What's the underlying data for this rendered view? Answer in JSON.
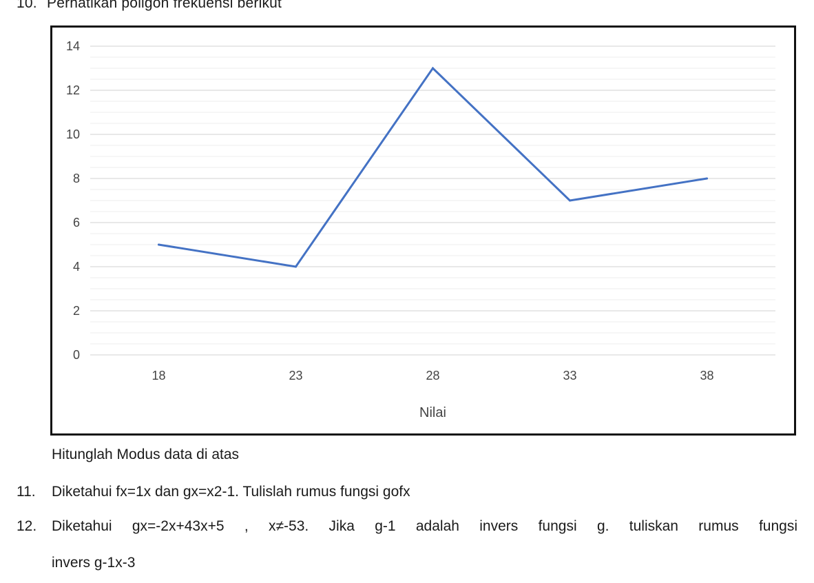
{
  "q10": {
    "number": "10.",
    "text": "Perhatikan poligon frekuensi berikut",
    "instruction": "Hitunglah Modus data di atas"
  },
  "q11": {
    "number": "11.",
    "text": "Diketahui fx=1x dan gx=x2-1. Tulislah rumus fungsi gofx"
  },
  "q12": {
    "number": "12.",
    "line1": "Diketahui gx=-2x+43x+5 , x≠-53. Jika g-1 adalah invers fungsi g. tuliskan rumus fungsi",
    "line2": "invers g-1x-3"
  },
  "chart_data": {
    "type": "line",
    "x": [
      18,
      23,
      28,
      33,
      38
    ],
    "categories": [
      "18",
      "23",
      "28",
      "33",
      "38"
    ],
    "series": [
      {
        "values": [
          5,
          4,
          13,
          7,
          8
        ],
        "color": "#4472c4"
      }
    ],
    "xlabel": "Nilai",
    "ylabel": "",
    "ylim": [
      0,
      14
    ],
    "yticks": [
      "0",
      "2",
      "4",
      "6",
      "8",
      "10",
      "12",
      "14"
    ],
    "grid": true,
    "legend": "none"
  }
}
